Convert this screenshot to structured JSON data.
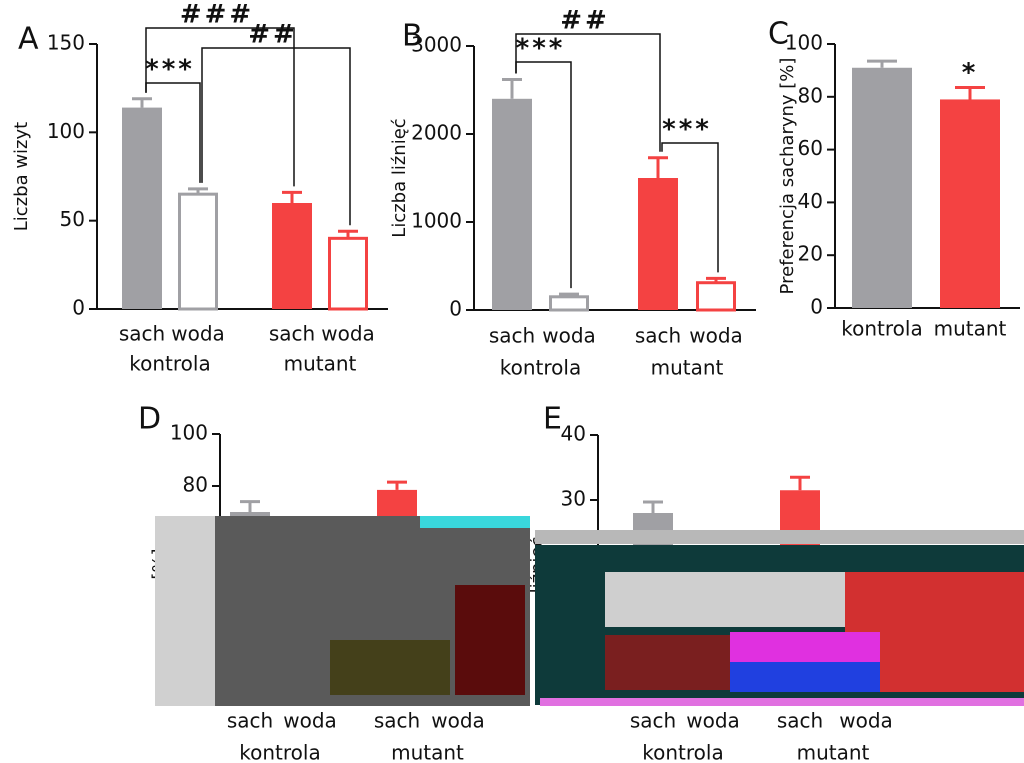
{
  "chart_data": [
    {
      "type": "bar",
      "title": "A",
      "ylabel": "Liczba wizyt",
      "categories": [
        "sach",
        "woda",
        "sach",
        "woda"
      ],
      "groups": [
        "kontrola",
        "mutant"
      ],
      "values": [
        114,
        65,
        60,
        40
      ],
      "errors": [
        5,
        3,
        6,
        4
      ],
      "colors": [
        "#a0a0a4",
        "#a0a0a4",
        "#f44242",
        "#f44242"
      ],
      "filled": [
        true,
        false,
        true,
        false
      ],
      "ylim": [
        0,
        150
      ],
      "yticks": [
        0,
        50,
        100,
        150
      ],
      "annotations": [
        {
          "text": "***",
          "from": 0,
          "to": 1
        },
        {
          "text": "###",
          "from": 0,
          "to": 2
        },
        {
          "text": "##",
          "from": 1,
          "to": 3
        }
      ]
    },
    {
      "type": "bar",
      "title": "B",
      "ylabel": "Liczba liźnięć",
      "categories": [
        "sach",
        "woda",
        "sach",
        "woda"
      ],
      "groups": [
        "kontrola",
        "mutant"
      ],
      "values": [
        2400,
        150,
        1500,
        310
      ],
      "errors": [
        220,
        30,
        230,
        50
      ],
      "colors": [
        "#a0a0a4",
        "#a0a0a4",
        "#f44242",
        "#f44242"
      ],
      "filled": [
        true,
        false,
        true,
        false
      ],
      "ylim": [
        0,
        3000
      ],
      "yticks": [
        0,
        1000,
        2000,
        3000
      ],
      "annotations": [
        {
          "text": "***",
          "from": 0,
          "to": 1
        },
        {
          "text": "##",
          "from": 0,
          "to": 2
        },
        {
          "text": "***",
          "from": 2,
          "to": 3
        }
      ]
    },
    {
      "type": "bar",
      "title": "C",
      "ylabel": "Preferencja sacharyny [%]",
      "categories": [
        "kontrola",
        "mutant"
      ],
      "values": [
        91,
        79
      ],
      "errors": [
        2.5,
        4.5
      ],
      "colors": [
        "#a0a0a4",
        "#f44242"
      ],
      "filled": [
        true,
        true
      ],
      "ylim": [
        0,
        100
      ],
      "yticks": [
        0,
        20,
        40,
        60,
        80,
        100
      ],
      "annotations": [
        {
          "text": "*",
          "from": 1,
          "to": 1
        }
      ]
    },
    {
      "type": "bar",
      "title": "D",
      "ylabel": "[%]",
      "categories": [
        "sach",
        "woda",
        "sach",
        "woda"
      ],
      "groups": [
        "kontrola",
        "mutant"
      ],
      "values": [
        70,
        null,
        78.5,
        null
      ],
      "errors": [
        4,
        null,
        3,
        null
      ],
      "colors": [
        "#a0a0a4",
        "#a0a0a4",
        "#f44242",
        "#f44242"
      ],
      "filled": [
        true,
        false,
        true,
        false
      ],
      "ylim": [
        0,
        100
      ],
      "yticks": [
        80,
        100
      ]
    },
    {
      "type": "bar",
      "title": "E",
      "ylabel": "liźnięć",
      "categories": [
        "sach",
        "woda",
        "sach",
        "woda"
      ],
      "groups": [
        "kontrola",
        "mutant"
      ],
      "values": [
        28,
        null,
        31.5,
        null
      ],
      "errors": [
        1.7,
        null,
        2,
        null
      ],
      "colors": [
        "#a0a0a4",
        "#a0a0a4",
        "#f44242",
        "#f44242"
      ],
      "filled": [
        true,
        false,
        true,
        false
      ],
      "ylim": [
        0,
        40
      ],
      "yticks": [
        30,
        40
      ]
    }
  ]
}
